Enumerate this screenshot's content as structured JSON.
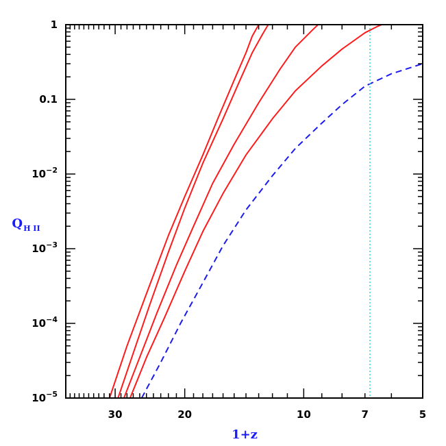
{
  "chart_data": {
    "type": "line",
    "title": "",
    "xlabel": "1+z",
    "ylabel": "Q",
    "ylabel_subscript": "H II",
    "xscale": "log",
    "yscale": "log",
    "x_reversed": true,
    "xlim": [
      40,
      5
    ],
    "ylim": [
      1e-05,
      1
    ],
    "x_ticks": [
      {
        "value": 30,
        "label": "30"
      },
      {
        "value": 20,
        "label": "20"
      },
      {
        "value": 10,
        "label": "10"
      },
      {
        "value": 7,
        "label": "7"
      },
      {
        "value": 5,
        "label": "5"
      }
    ],
    "y_ticks": [
      {
        "value": 1,
        "base": "1",
        "exp": ""
      },
      {
        "value": 0.1,
        "base": "0.1",
        "exp": ""
      },
      {
        "value": 0.01,
        "base": "10",
        "exp": "−2"
      },
      {
        "value": 0.001,
        "base": "10",
        "exp": "−3"
      },
      {
        "value": 0.0001,
        "base": "10",
        "exp": "−4"
      },
      {
        "value": 1e-05,
        "base": "10",
        "exp": "−5"
      }
    ],
    "grid": false,
    "series": [
      {
        "style": "solid",
        "color": "#ff1a1a",
        "points": [
          [
            31.0,
            1e-05
          ],
          [
            28.0,
            5e-05
          ],
          [
            25.0,
            0.00025
          ],
          [
            22.0,
            0.0015
          ],
          [
            20.0,
            0.005
          ],
          [
            18.0,
            0.018
          ],
          [
            16.5,
            0.055
          ],
          [
            15.0,
            0.18
          ],
          [
            14.0,
            0.42
          ],
          [
            13.5,
            0.7
          ],
          [
            13.0,
            1.0
          ],
          [
            5.0,
            1.0
          ]
        ]
      },
      {
        "style": "solid",
        "color": "#ff1a1a",
        "points": [
          [
            29.5,
            1e-05
          ],
          [
            27.0,
            4e-05
          ],
          [
            24.5,
            0.00018
          ],
          [
            22.0,
            0.0009
          ],
          [
            20.0,
            0.0035
          ],
          [
            18.0,
            0.014
          ],
          [
            16.0,
            0.055
          ],
          [
            14.5,
            0.18
          ],
          [
            13.5,
            0.42
          ],
          [
            12.7,
            0.75
          ],
          [
            12.3,
            1.0
          ],
          [
            5.0,
            1.0
          ]
        ]
      },
      {
        "style": "solid",
        "color": "#ff1a1a",
        "points": [
          [
            28.5,
            1e-05
          ],
          [
            26.0,
            3.5e-05
          ],
          [
            23.5,
            0.00014
          ],
          [
            21.0,
            0.0006
          ],
          [
            19.0,
            0.002
          ],
          [
            17.0,
            0.0075
          ],
          [
            15.0,
            0.025
          ],
          [
            13.0,
            0.09
          ],
          [
            11.5,
            0.25
          ],
          [
            10.5,
            0.5
          ],
          [
            9.5,
            0.85
          ],
          [
            9.2,
            1.0
          ],
          [
            5.0,
            1.0
          ]
        ]
      },
      {
        "style": "solid",
        "color": "#ff1a1a",
        "points": [
          [
            27.5,
            1e-05
          ],
          [
            25.0,
            3.5e-05
          ],
          [
            22.5,
            0.00012
          ],
          [
            20.0,
            0.0005
          ],
          [
            18.0,
            0.0017
          ],
          [
            16.0,
            0.0055
          ],
          [
            14.0,
            0.018
          ],
          [
            12.0,
            0.055
          ],
          [
            10.5,
            0.13
          ],
          [
            9.0,
            0.28
          ],
          [
            8.0,
            0.47
          ],
          [
            7.0,
            0.78
          ],
          [
            6.5,
            0.95
          ],
          [
            6.35,
            1.0
          ],
          [
            5.0,
            1.0
          ]
        ]
      },
      {
        "style": "dashed",
        "color": "#1a1aee",
        "points": [
          [
            25.7,
            1e-05
          ],
          [
            23.0,
            3e-05
          ],
          [
            20.5,
            0.0001
          ],
          [
            18.0,
            0.00035
          ],
          [
            16.0,
            0.0011
          ],
          [
            14.0,
            0.0033
          ],
          [
            12.0,
            0.0095
          ],
          [
            10.5,
            0.022
          ],
          [
            9.0,
            0.048
          ],
          [
            8.0,
            0.085
          ],
          [
            7.0,
            0.15
          ],
          [
            6.0,
            0.22
          ],
          [
            5.0,
            0.3
          ]
        ]
      }
    ],
    "vertical_line": {
      "x": 6.8,
      "style": "dotted",
      "color": "#33dddd"
    }
  }
}
